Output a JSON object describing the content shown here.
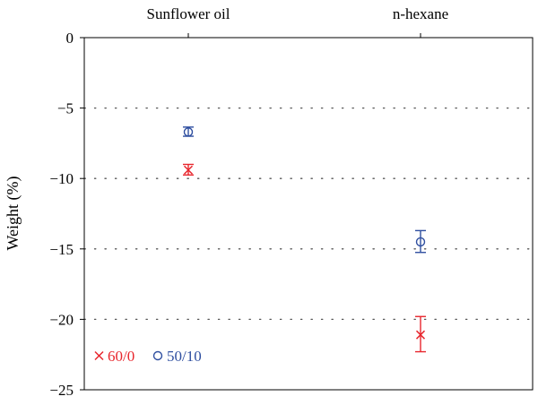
{
  "chart_data": {
    "type": "scatter",
    "categories": [
      "Sunflower oil",
      "n-hexane"
    ],
    "ylabel": "Weight (%)",
    "ylim": [
      -25,
      0
    ],
    "yticks": [
      0,
      -5,
      -10,
      -15,
      -20,
      -25
    ],
    "ytick_labels": [
      "0",
      "−5",
      "−10",
      "−15",
      "−20",
      "−25"
    ],
    "grid": true,
    "legend_position": "bottom-left",
    "series": [
      {
        "name": "60/0",
        "marker": "×",
        "color": "#e8262d",
        "values": [
          -9.4,
          -21.1
        ],
        "errors": [
          [
            -9.75,
            -9.0
          ],
          [
            -22.3,
            -19.8
          ]
        ]
      },
      {
        "name": "50/10",
        "marker": "○",
        "color": "#2f4fa0",
        "values": [
          -6.7,
          -14.5
        ],
        "errors": [
          [
            -7.0,
            -6.35
          ],
          [
            -15.25,
            -13.7
          ]
        ]
      }
    ]
  }
}
